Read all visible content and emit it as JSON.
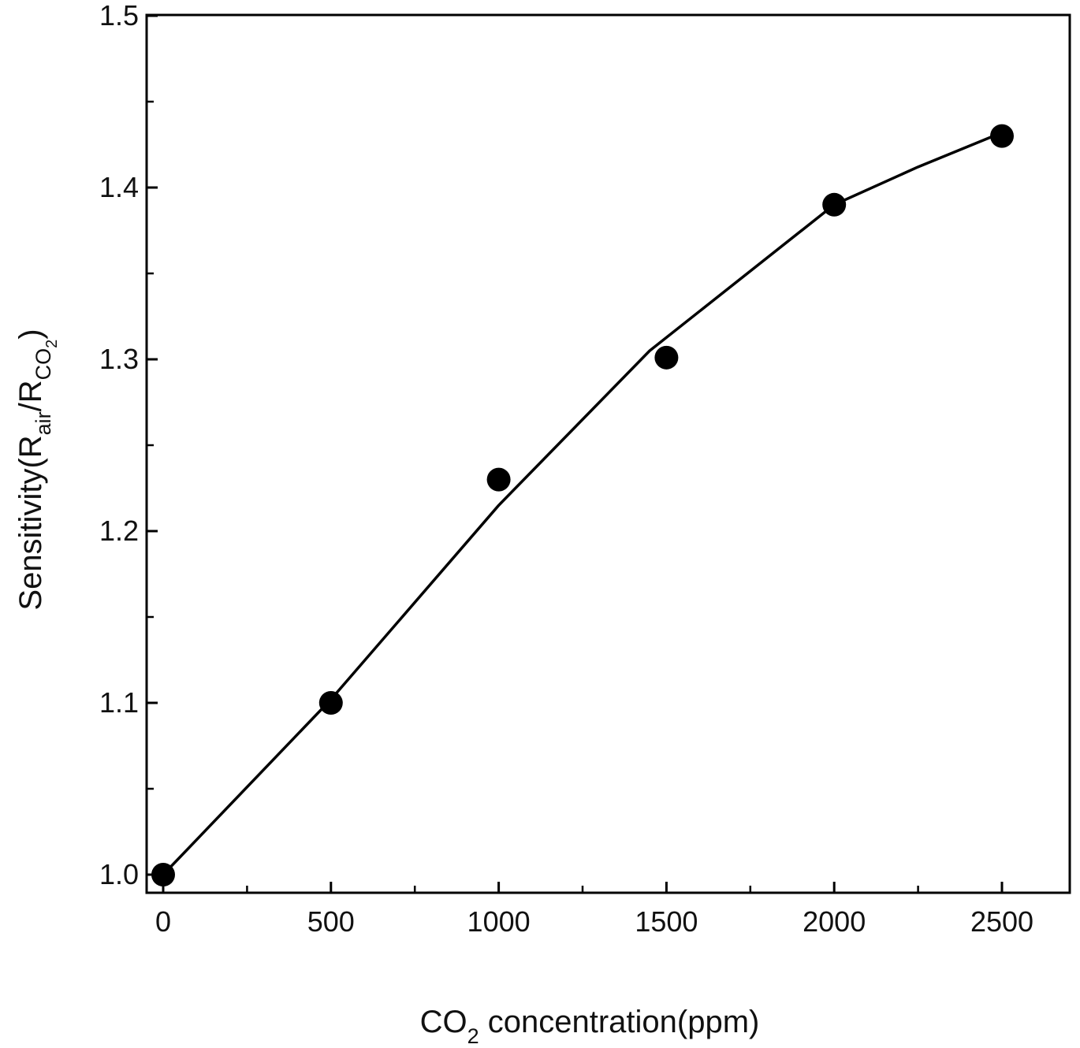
{
  "chart_data": {
    "type": "scatter",
    "title": "",
    "xlabel": {
      "main": "CO",
      "sub": "2",
      "tail": " concentration(ppm)"
    },
    "ylabel": {
      "prefix": "Sensitivity(R",
      "sub1": "air",
      "mid": "/R",
      "sub2": "CO",
      "subsub": "2",
      "suffix": ")"
    },
    "xlim": [
      -50,
      2700
    ],
    "ylim": [
      0.99,
      1.5
    ],
    "x_ticks": [
      0,
      500,
      1000,
      1500,
      2000,
      2500
    ],
    "x_tick_labels": [
      "0",
      "500",
      "1000",
      "1500",
      "2000",
      "2500"
    ],
    "x_minor_ticks": [
      250,
      750,
      1250,
      1750,
      2250
    ],
    "y_ticks": [
      1.0,
      1.1,
      1.2,
      1.3,
      1.4,
      1.5
    ],
    "y_tick_labels": [
      "1.0",
      "1.1",
      "1.2",
      "1.3",
      "1.4",
      "1.5"
    ],
    "y_minor_ticks": [
      1.05,
      1.15,
      1.25,
      1.35,
      1.45
    ],
    "grid": false,
    "series": [
      {
        "type": "scatter",
        "marker": "filled-circle",
        "color": "#000000",
        "x": [
          0,
          500,
          1000,
          1500,
          2000,
          2500
        ],
        "y": [
          1.0,
          1.1,
          1.23,
          1.301,
          1.39,
          1.43
        ]
      },
      {
        "type": "line",
        "color": "#000000",
        "x": [
          0,
          500,
          1000,
          1450,
          2000,
          2250,
          2500
        ],
        "y": [
          1.0,
          1.102,
          1.215,
          1.305,
          1.39,
          1.412,
          1.432
        ]
      }
    ]
  }
}
